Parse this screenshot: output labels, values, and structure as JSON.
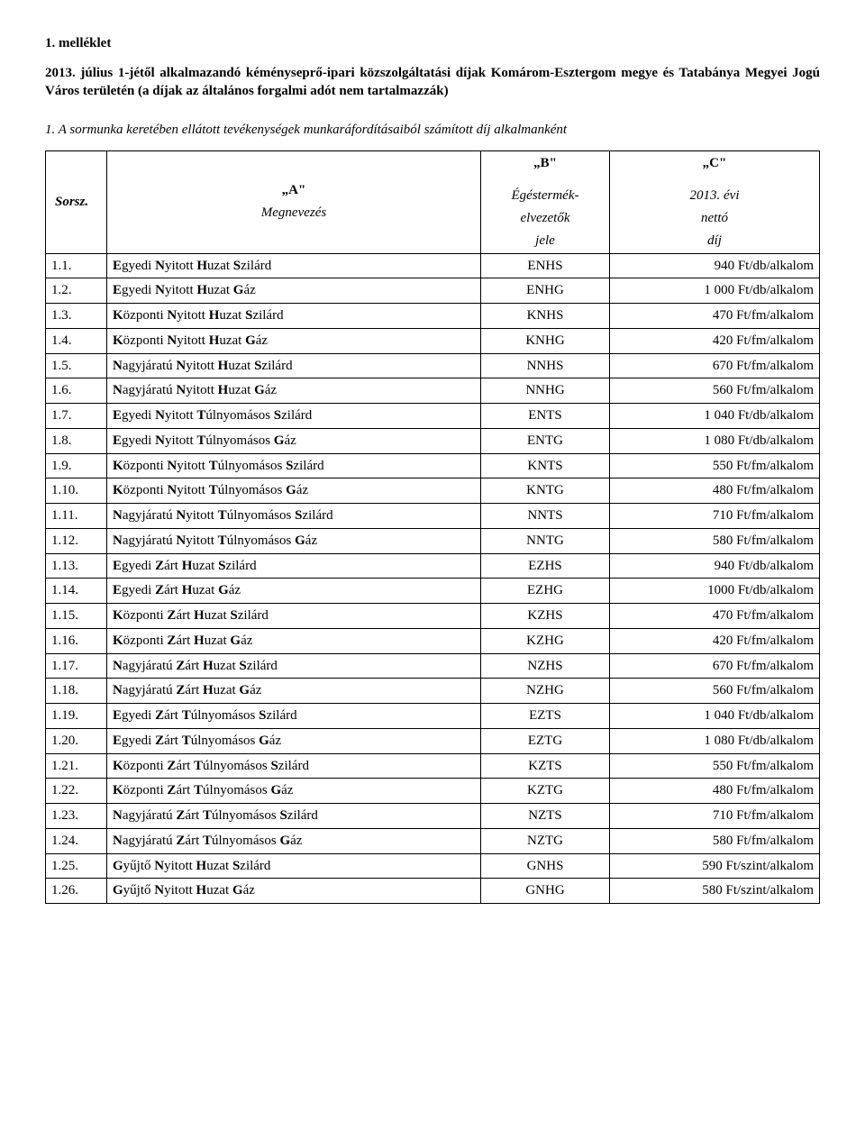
{
  "document": {
    "attachment_label": "1. melléklet",
    "main_title": "2013. július 1-jétől alkalmazandó kéményseprő-ipari közszolgáltatási díjak Komárom-Esztergom megye és Tatabánya Megyei Jogú Város területén (a díjak az általános forgalmi adót nem tartalmazzák)",
    "section_title": "1. A sormunka keretében ellátott tevékenységek munkaráfordításaiból számított díj alkalmanként"
  },
  "table": {
    "headers": {
      "sorsz": "Sorsz.",
      "col_a_letter": "„A\"",
      "col_a_sub": "Megnevezés",
      "col_b_letter": "„B\"",
      "col_b_sub1": "Égéstermék-",
      "col_b_sub2": "elvezetők",
      "col_b_sub3": "jele",
      "col_c_letter": "„C\"",
      "col_c_sub1": "2013. évi",
      "col_c_sub2": "nettó",
      "col_c_sub3": "díj"
    },
    "rows": [
      {
        "n": "1.1.",
        "name": "Egyedi Nyitott Huzat Szilárd",
        "code": "ENHS",
        "price": "940 Ft/db/alkalom"
      },
      {
        "n": "1.2.",
        "name": "Egyedi Nyitott Huzat Gáz",
        "code": "ENHG",
        "price": "1 000 Ft/db/alkalom"
      },
      {
        "n": "1.3.",
        "name": "Központi Nyitott Huzat Szilárd",
        "code": "KNHS",
        "price": "470 Ft/fm/alkalom"
      },
      {
        "n": "1.4.",
        "name": "Központi Nyitott Huzat Gáz",
        "code": "KNHG",
        "price": "420 Ft/fm/alkalom"
      },
      {
        "n": "1.5.",
        "name": "Nagyjáratú Nyitott Huzat Szilárd",
        "code": "NNHS",
        "price": "670 Ft/fm/alkalom"
      },
      {
        "n": "1.6.",
        "name": "Nagyjáratú Nyitott Huzat Gáz",
        "code": "NNHG",
        "price": "560 Ft/fm/alkalom"
      },
      {
        "n": "1.7.",
        "name": "Egyedi Nyitott Túlnyomásos Szilárd",
        "code": "ENTS",
        "price": "1 040 Ft/db/alkalom"
      },
      {
        "n": "1.8.",
        "name": "Egyedi Nyitott Túlnyomásos Gáz",
        "code": "ENTG",
        "price": "1 080 Ft/db/alkalom"
      },
      {
        "n": "1.9.",
        "name": "Központi Nyitott Túlnyomásos Szilárd",
        "code": "KNTS",
        "price": "550 Ft/fm/alkalom"
      },
      {
        "n": "1.10.",
        "name": "Központi Nyitott Túlnyomásos Gáz",
        "code": "KNTG",
        "price": "480 Ft/fm/alkalom"
      },
      {
        "n": "1.11.",
        "name": "Nagyjáratú Nyitott Túlnyomásos Szilárd",
        "code": "NNTS",
        "price": "710 Ft/fm/alkalom"
      },
      {
        "n": "1.12.",
        "name": "Nagyjáratú Nyitott Túlnyomásos Gáz",
        "code": "NNTG",
        "price": "580 Ft/fm/alkalom"
      },
      {
        "n": "1.13.",
        "name": "Egyedi Zárt Huzat Szilárd",
        "code": "EZHS",
        "price": "940 Ft/db/alkalom"
      },
      {
        "n": "1.14.",
        "name": "Egyedi Zárt Huzat Gáz",
        "code": "EZHG",
        "price": "1000 Ft/db/alkalom"
      },
      {
        "n": "1.15.",
        "name": "Központi Zárt Huzat Szilárd",
        "code": "KZHS",
        "price": "470 Ft/fm/alkalom"
      },
      {
        "n": "1.16.",
        "name": "Központi Zárt Huzat Gáz",
        "code": "KZHG",
        "price": "420 Ft/fm/alkalom"
      },
      {
        "n": "1.17.",
        "name": "Nagyjáratú Zárt Huzat Szilárd",
        "code": "NZHS",
        "price": "670 Ft/fm/alkalom"
      },
      {
        "n": "1.18.",
        "name": "Nagyjáratú Zárt Huzat Gáz",
        "code": "NZHG",
        "price": "560 Ft/fm/alkalom"
      },
      {
        "n": "1.19.",
        "name": "Egyedi Zárt Túlnyomásos Szilárd",
        "code": "EZTS",
        "price": "1 040 Ft/db/alkalom"
      },
      {
        "n": "1.20.",
        "name": "Egyedi Zárt Túlnyomásos Gáz",
        "code": "EZTG",
        "price": "1 080 Ft/db/alkalom"
      },
      {
        "n": "1.21.",
        "name": "Központi Zárt Túlnyomásos Szilárd",
        "code": "KZTS",
        "price": "550 Ft/fm/alkalom"
      },
      {
        "n": "1.22.",
        "name": "Központi Zárt Túlnyomásos Gáz",
        "code": "KZTG",
        "price": "480 Ft/fm/alkalom"
      },
      {
        "n": "1.23.",
        "name": "Nagyjáratú Zárt Túlnyomásos Szilárd",
        "code": "NZTS",
        "price": "710 Ft/fm/alkalom"
      },
      {
        "n": "1.24.",
        "name": "Nagyjáratú Zárt Túlnyomásos Gáz",
        "code": "NZTG",
        "price": "580 Ft/fm/alkalom"
      },
      {
        "n": "1.25.",
        "name": "Gyűjtő Nyitott Huzat Szilárd",
        "code": "GNHS",
        "price": "590 Ft/szint/alkalom"
      },
      {
        "n": "1.26.",
        "name": "Gyűjtő Nyitott Huzat Gáz",
        "code": "GNHG",
        "price": "580 Ft/szint/alkalom"
      }
    ]
  }
}
